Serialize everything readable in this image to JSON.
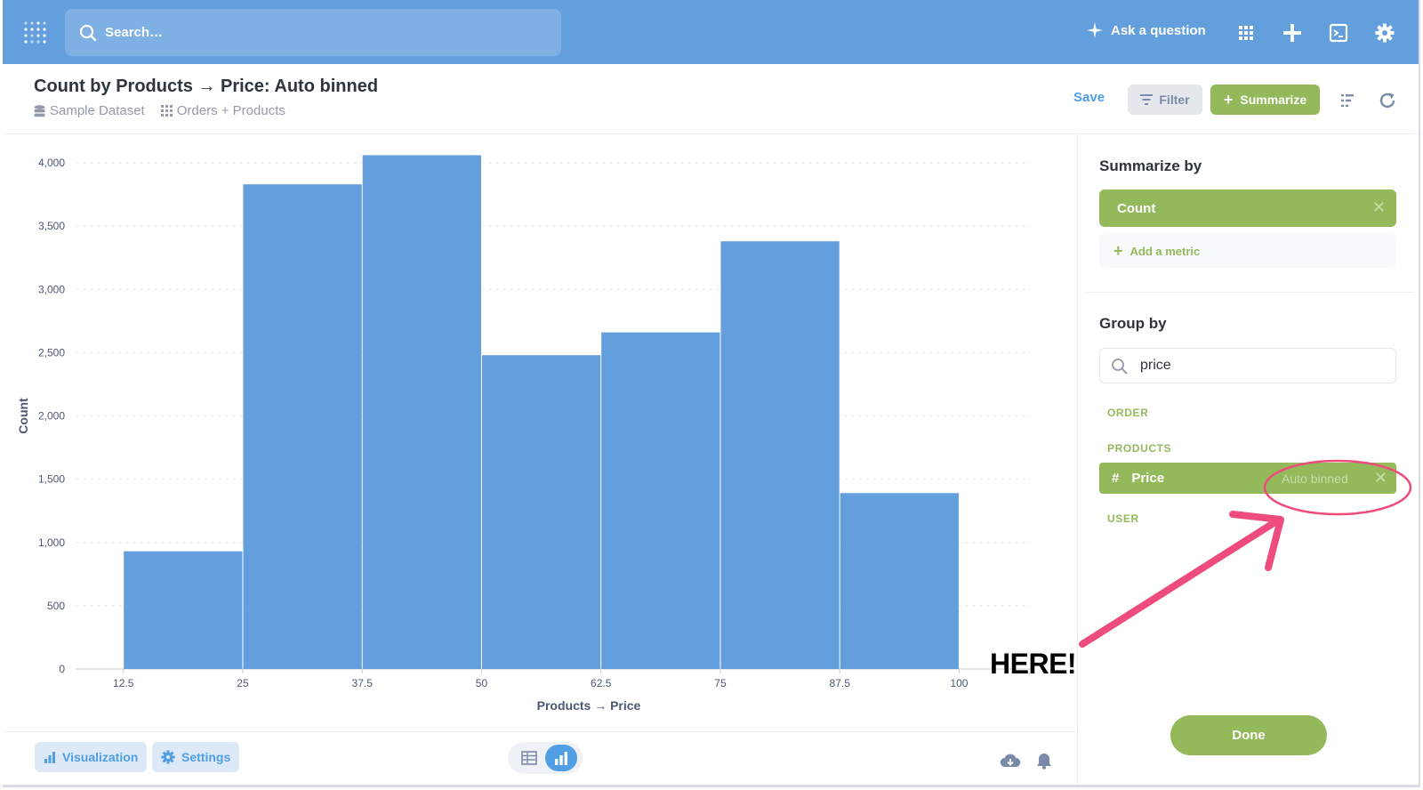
{
  "nav": {
    "search_placeholder": "Search…",
    "ask_label": "Ask a question"
  },
  "header": {
    "title": "Count by Products → Price: Auto binned",
    "breadcrumbs": [
      "Sample Dataset",
      "Orders + Products"
    ],
    "save_label": "Save",
    "filter_label": "Filter",
    "summarize_label": "Summarize"
  },
  "chart_data": {
    "type": "bar",
    "x": [
      12.5,
      25,
      37.5,
      50,
      62.5,
      75,
      87.5
    ],
    "bin_width": 12.5,
    "values": [
      930,
      3830,
      4060,
      2480,
      2660,
      3380,
      1390
    ],
    "xticks": [
      "12.5",
      "25",
      "37.5",
      "50",
      "62.5",
      "75",
      "87.5",
      "100"
    ],
    "yticks": [
      "0",
      "500",
      "1,000",
      "1,500",
      "2,000",
      "2,500",
      "3,000",
      "3,500",
      "4,000"
    ],
    "xlim": [
      7.5,
      107.5
    ],
    "ylim": [
      0,
      4000
    ],
    "xlabel": "Products → Price",
    "ylabel": "Count",
    "color": "#639fdc",
    "grid": true
  },
  "sidebar": {
    "summarize_heading": "Summarize by",
    "metric": "Count",
    "add_metric_label": "Add a metric",
    "group_heading": "Group by",
    "group_search_value": "price",
    "sections": [
      "ORDER",
      "PRODUCTS",
      "USER"
    ],
    "selected_dimension": "Price",
    "selected_binning": "Auto binned",
    "done_label": "Done"
  },
  "footer": {
    "visualization_label": "Visualization",
    "settings_label": "Settings"
  },
  "annotation": {
    "text": "HERE!",
    "color": "#ee4c7c"
  },
  "colors": {
    "brand": "#509ee3",
    "nav": "#639fdc",
    "summarize": "#93b95b"
  }
}
